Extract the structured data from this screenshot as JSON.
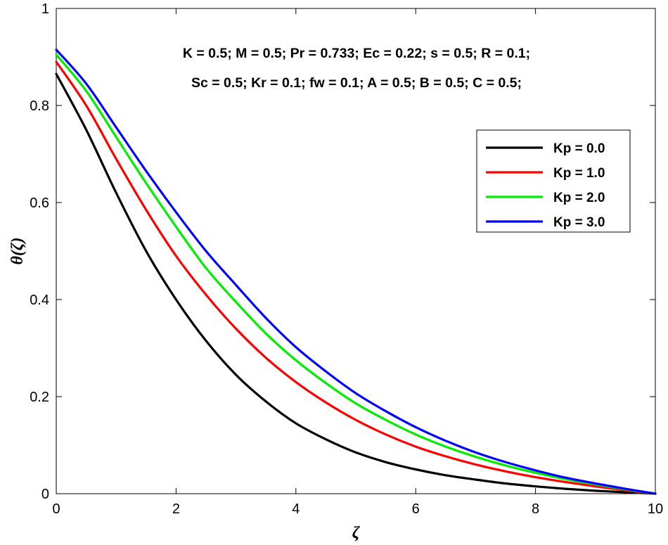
{
  "chart_data": {
    "type": "line",
    "title": "",
    "xlabel": "ζ",
    "ylabel": "θ(ζ)",
    "xlim": [
      0,
      10
    ],
    "ylim": [
      0,
      1
    ],
    "xticks": [
      0,
      2,
      4,
      6,
      8,
      10
    ],
    "yticks": [
      0,
      0.2,
      0.4,
      0.6,
      0.8,
      1
    ],
    "xtick_labels": [
      "0",
      "2",
      "4",
      "6",
      "8",
      "10"
    ],
    "ytick_labels": [
      "0",
      "0.2",
      "0.4",
      "0.6",
      "0.8",
      "1"
    ],
    "grid": false,
    "legend_position": "upper-right",
    "annotations": [
      "K = 0.5; M = 0.5; Pr = 0.733; Ec = 0.22; s = 0.5; R = 0.1;",
      "Sc = 0.5; Kr = 0.1; fw = 0.1; A = 0.5; B = 0.5; C = 0.5;"
    ],
    "x": [
      0,
      0.5,
      1,
      1.5,
      2,
      2.5,
      3,
      3.5,
      4,
      4.5,
      5,
      5.5,
      6,
      6.5,
      7,
      7.5,
      8,
      8.5,
      9,
      9.5,
      10
    ],
    "series": [
      {
        "name": "Kp = 0.0",
        "color": "#000000",
        "values": [
          0.865,
          0.75,
          0.62,
          0.5,
          0.4,
          0.315,
          0.245,
          0.19,
          0.145,
          0.112,
          0.085,
          0.065,
          0.05,
          0.038,
          0.029,
          0.021,
          0.015,
          0.01,
          0.006,
          0.003,
          0.0
        ]
      },
      {
        "name": "Kp = 1.0",
        "color": "#ff0000",
        "values": [
          0.89,
          0.8,
          0.69,
          0.585,
          0.49,
          0.41,
          0.34,
          0.28,
          0.23,
          0.188,
          0.152,
          0.122,
          0.097,
          0.077,
          0.06,
          0.046,
          0.034,
          0.024,
          0.015,
          0.007,
          0.0
        ]
      },
      {
        "name": "Kp = 2.0",
        "color": "#00ee00",
        "values": [
          0.905,
          0.83,
          0.735,
          0.64,
          0.55,
          0.465,
          0.395,
          0.33,
          0.275,
          0.228,
          0.186,
          0.152,
          0.122,
          0.097,
          0.076,
          0.058,
          0.043,
          0.03,
          0.019,
          0.009,
          0.0
        ]
      },
      {
        "name": "Kp = 3.0",
        "color": "#0000ff",
        "values": [
          0.915,
          0.845,
          0.755,
          0.665,
          0.58,
          0.5,
          0.43,
          0.362,
          0.302,
          0.252,
          0.207,
          0.17,
          0.137,
          0.109,
          0.085,
          0.065,
          0.048,
          0.033,
          0.021,
          0.01,
          0.0
        ]
      }
    ]
  }
}
